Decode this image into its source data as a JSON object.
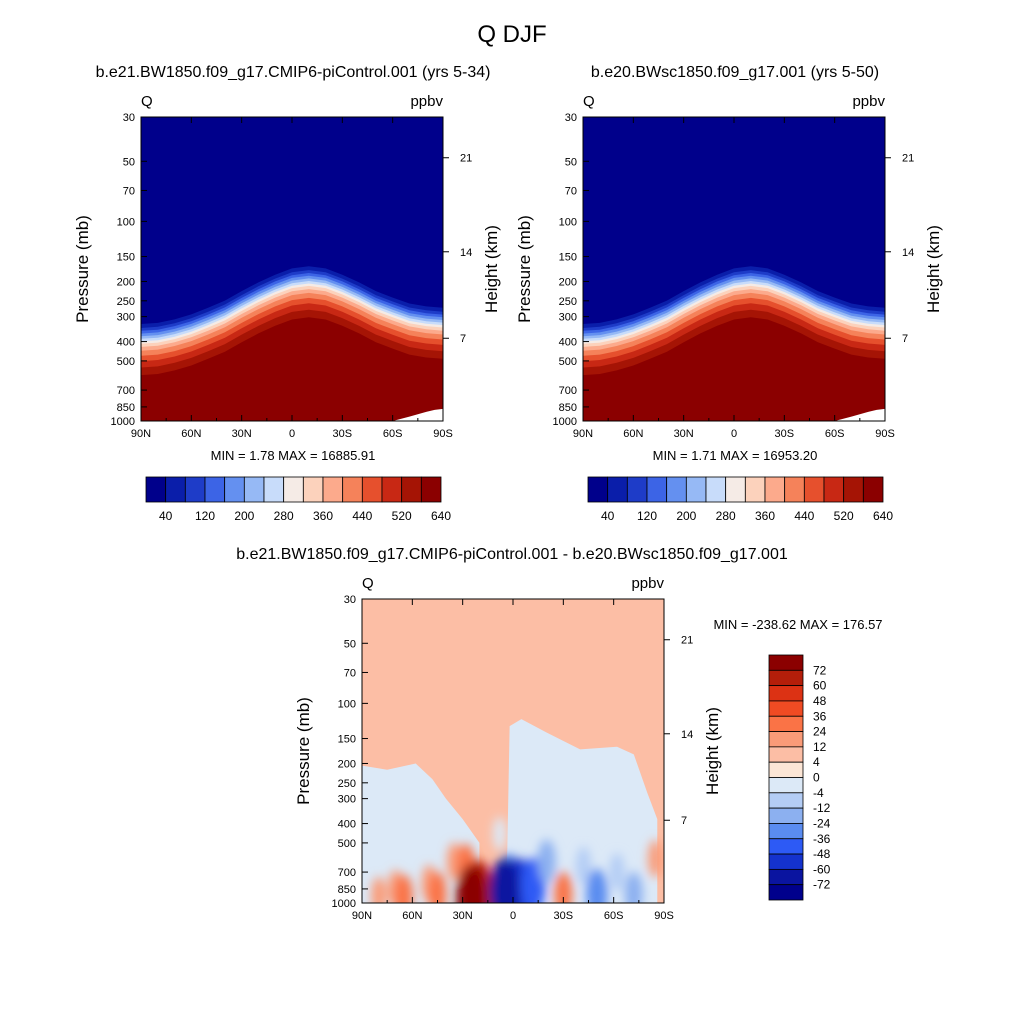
{
  "figure_title": "Q DJF",
  "chart_data": [
    {
      "type": "heatmap",
      "id": "panel1",
      "title": "b.e21.BW1850.f09_g17.CMIP6-piControl.001 (yrs 5-34)",
      "variable": "Q",
      "units": "ppbv",
      "ylabel": "Pressure (mb)",
      "y2label": "Height (km)",
      "x_ticks": [
        "90N",
        "60N",
        "30N",
        "0",
        "30S",
        "60S",
        "90S"
      ],
      "x_range": [
        90,
        -90
      ],
      "y_ticks": [
        30,
        50,
        70,
        100,
        150,
        200,
        250,
        300,
        400,
        500,
        700,
        850,
        1000
      ],
      "y_range": [
        1000,
        30
      ],
      "y2_ticks": [
        21,
        14,
        7
      ],
      "tropopause_boundary_mb": [
        [
          90,
          380
        ],
        [
          80,
          375
        ],
        [
          70,
          360
        ],
        [
          60,
          340
        ],
        [
          50,
          315
        ],
        [
          40,
          290
        ],
        [
          30,
          260
        ],
        [
          20,
          235
        ],
        [
          10,
          215
        ],
        [
          0,
          200
        ],
        [
          -10,
          195
        ],
        [
          -20,
          200
        ],
        [
          -30,
          215
        ],
        [
          -40,
          235
        ],
        [
          -50,
          260
        ],
        [
          -60,
          280
        ],
        [
          -70,
          300
        ],
        [
          -80,
          310
        ],
        [
          -90,
          315
        ]
      ],
      "ground_cutoff_mb": [
        [
          -60,
          1000
        ],
        [
          -70,
          950
        ],
        [
          -80,
          900
        ],
        [
          -85,
          880
        ],
        [
          -90,
          870
        ]
      ],
      "stats": "MIN =   1.78  MAX = 16885.91",
      "colorbar": {
        "labels": [
          "40",
          "120",
          "200",
          "280",
          "360",
          "440",
          "520",
          "640"
        ],
        "colors": [
          "#00008b",
          "#0a1eaa",
          "#1e3cc8",
          "#3c64e6",
          "#6490f0",
          "#96b9f5",
          "#c8dcfa",
          "#f5ebe6",
          "#fcd2bc",
          "#fcaa8c",
          "#f5825a",
          "#e6502d",
          "#c82814",
          "#a51405",
          "#8b0000"
        ]
      }
    },
    {
      "type": "heatmap",
      "id": "panel2",
      "title": "b.e20.BWsc1850.f09_g17.001 (yrs 5-50)",
      "variable": "Q",
      "units": "ppbv",
      "ylabel": "Pressure (mb)",
      "y2label": "Height (km)",
      "x_ticks": [
        "90N",
        "60N",
        "30N",
        "0",
        "30S",
        "60S",
        "90S"
      ],
      "x_range": [
        90,
        -90
      ],
      "y_ticks": [
        30,
        50,
        70,
        100,
        150,
        200,
        250,
        300,
        400,
        500,
        700,
        850,
        1000
      ],
      "y_range": [
        1000,
        30
      ],
      "y2_ticks": [
        21,
        14,
        7
      ],
      "tropopause_boundary_mb": [
        [
          90,
          380
        ],
        [
          80,
          375
        ],
        [
          70,
          360
        ],
        [
          60,
          340
        ],
        [
          50,
          315
        ],
        [
          40,
          290
        ],
        [
          30,
          260
        ],
        [
          20,
          235
        ],
        [
          10,
          215
        ],
        [
          0,
          200
        ],
        [
          -10,
          195
        ],
        [
          -20,
          200
        ],
        [
          -30,
          215
        ],
        [
          -40,
          235
        ],
        [
          -50,
          260
        ],
        [
          -60,
          280
        ],
        [
          -70,
          300
        ],
        [
          -80,
          310
        ],
        [
          -90,
          315
        ]
      ],
      "ground_cutoff_mb": [
        [
          -60,
          1000
        ],
        [
          -70,
          950
        ],
        [
          -80,
          900
        ],
        [
          -85,
          880
        ],
        [
          -90,
          870
        ]
      ],
      "stats": "MIN =   1.71  MAX = 16953.20",
      "colorbar": {
        "labels": [
          "40",
          "120",
          "200",
          "280",
          "360",
          "440",
          "520",
          "640"
        ],
        "colors": [
          "#00008b",
          "#0a1eaa",
          "#1e3cc8",
          "#3c64e6",
          "#6490f0",
          "#96b9f5",
          "#c8dcfa",
          "#f5ebe6",
          "#fcd2bc",
          "#fcaa8c",
          "#f5825a",
          "#e6502d",
          "#c82814",
          "#a51405",
          "#8b0000"
        ]
      }
    },
    {
      "type": "heatmap",
      "id": "panel3",
      "title": "b.e21.BW1850.f09_g17.CMIP6-piControl.001 - b.e20.BWsc1850.f09_g17.001",
      "variable": "Q",
      "units": "ppbv",
      "ylabel": "Pressure (mb)",
      "y2label": "Height (km)",
      "x_ticks": [
        "90N",
        "60N",
        "30N",
        "0",
        "30S",
        "60S",
        "90S"
      ],
      "x_range": [
        90,
        -90
      ],
      "y_ticks": [
        30,
        50,
        70,
        100,
        150,
        200,
        250,
        300,
        400,
        500,
        700,
        850,
        1000
      ],
      "y_range": [
        1000,
        30
      ],
      "y2_ticks": [
        21,
        14,
        7
      ],
      "stats": "MIN = -238.62  MAX = 176.57",
      "background_level": "4",
      "colorbar": {
        "labels": [
          "72",
          "60",
          "48",
          "36",
          "24",
          "12",
          "4",
          "0",
          "-4",
          "-12",
          "-24",
          "-36",
          "-48",
          "-60",
          "-72"
        ],
        "colors": [
          "#8b0000",
          "#b41e0a",
          "#dc3214",
          "#f04b23",
          "#fa7346",
          "#fa9b78",
          "#fcbea5",
          "#fce6d6",
          "#dce9f7",
          "#b4cdf5",
          "#8cb0f0",
          "#5a8cf0",
          "#2d5af5",
          "#1432cd",
          "#0a14a0",
          "#00008c"
        ]
      },
      "anomalies": [
        {
          "lat": 80,
          "p": 920,
          "level": "12"
        },
        {
          "lat": 70,
          "p": 850,
          "level": "12"
        },
        {
          "lat": 65,
          "p": 930,
          "level": "24"
        },
        {
          "lat": 50,
          "p": 800,
          "level": "12"
        },
        {
          "lat": 45,
          "p": 900,
          "level": "24"
        },
        {
          "lat": 35,
          "p": 620,
          "level": "12"
        },
        {
          "lat": 28,
          "p": 650,
          "level": "24"
        },
        {
          "lat": 22,
          "p": 800,
          "level": "36"
        },
        {
          "lat": 20,
          "p": 880,
          "level": "60"
        },
        {
          "lat": 25,
          "p": 950,
          "level": "72"
        },
        {
          "lat": 8,
          "p": 450,
          "level": "-4"
        },
        {
          "lat": 3,
          "p": 750,
          "level": "-36"
        },
        {
          "lat": -3,
          "p": 850,
          "level": "-60"
        },
        {
          "lat": 5,
          "p": 880,
          "level": "-72"
        },
        {
          "lat": -12,
          "p": 820,
          "level": "-48"
        },
        {
          "lat": -20,
          "p": 620,
          "level": "-24"
        },
        {
          "lat": -30,
          "p": 900,
          "level": "24"
        },
        {
          "lat": -42,
          "p": 650,
          "level": "-12"
        },
        {
          "lat": -50,
          "p": 900,
          "level": "-36"
        },
        {
          "lat": -62,
          "p": 700,
          "level": "-12"
        },
        {
          "lat": -72,
          "p": 900,
          "level": "-24"
        },
        {
          "lat": -85,
          "p": 600,
          "level": "12"
        }
      ]
    }
  ]
}
